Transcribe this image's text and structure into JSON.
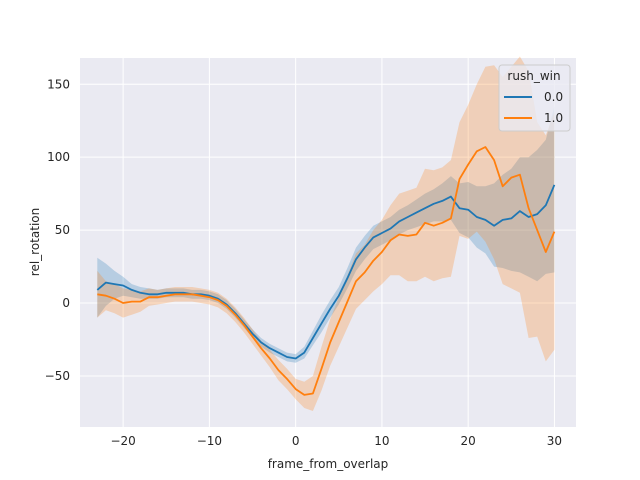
{
  "chart_data": {
    "type": "line",
    "title": "",
    "xlabel": "frame_from_overlap",
    "ylabel": "rel_rotation",
    "xlim": [
      -25,
      32.5
    ],
    "ylim": [
      -85,
      168
    ],
    "xticks": [
      -20,
      -10,
      0,
      10,
      20,
      30
    ],
    "yticks": [
      -50,
      0,
      50,
      100,
      150
    ],
    "xtick_labels": [
      "−20",
      "−10",
      "0",
      "10",
      "20",
      "30"
    ],
    "ytick_labels": [
      "−50",
      "0",
      "50",
      "100",
      "150"
    ],
    "grid": true,
    "background": "#eaeaf2",
    "legend": {
      "title": "rush_win",
      "placement": "top-right"
    },
    "x": [
      -23,
      -22,
      -21,
      -20,
      -19,
      -18,
      -17,
      -16,
      -15,
      -14,
      -13,
      -12,
      -11,
      -10,
      -9,
      -8,
      -7,
      -6,
      -5,
      -4,
      -3,
      -2,
      -1,
      0,
      1,
      2,
      3,
      4,
      5,
      6,
      7,
      8,
      9,
      10,
      11,
      12,
      13,
      14,
      15,
      16,
      17,
      18,
      19,
      20,
      21,
      22,
      23,
      24,
      25,
      26,
      27,
      28,
      29,
      30
    ],
    "series": [
      {
        "name": "0.0",
        "color": "#1f77b4",
        "values": [
          9,
          14,
          13,
          12,
          9,
          7,
          6,
          6,
          7,
          7,
          7,
          6,
          6,
          5,
          3,
          -1,
          -7,
          -14,
          -21,
          -27,
          -31,
          -34,
          -37,
          -38,
          -34,
          -24,
          -14,
          -4,
          5,
          17,
          30,
          38,
          45,
          48,
          51,
          56,
          59,
          62,
          65,
          68,
          70,
          73,
          65,
          64,
          59,
          57,
          53,
          57,
          58,
          63,
          59,
          61,
          67,
          81
        ],
        "lower": [
          -10,
          -2,
          3,
          5,
          4,
          3,
          3,
          3,
          4,
          4,
          4,
          3,
          3,
          2,
          0,
          -4,
          -10,
          -17,
          -24,
          -30,
          -34,
          -37,
          -40,
          -41,
          -38,
          -29,
          -20,
          -10,
          -1,
          10,
          22,
          30,
          37,
          40,
          43,
          47,
          50,
          52,
          54,
          56,
          56,
          57,
          48,
          45,
          38,
          34,
          25,
          24,
          22,
          21,
          18,
          15,
          20,
          21
        ],
        "upper": [
          31,
          27,
          22,
          18,
          13,
          11,
          10,
          9,
          10,
          10,
          10,
          9,
          9,
          8,
          6,
          2,
          -4,
          -11,
          -18,
          -24,
          -28,
          -31,
          -34,
          -35,
          -30,
          -19,
          -8,
          2,
          11,
          24,
          38,
          46,
          53,
          56,
          59,
          64,
          67,
          71,
          75,
          78,
          82,
          87,
          82,
          83,
          80,
          80,
          82,
          88,
          92,
          100,
          100,
          105,
          112,
          135
        ]
      },
      {
        "name": "1.0",
        "color": "#ff7f0e",
        "values": [
          6,
          5,
          3,
          0,
          1,
          1,
          4,
          4,
          5,
          6,
          6,
          6,
          5,
          4,
          2,
          -2,
          -8,
          -15,
          -23,
          -31,
          -38,
          -46,
          -52,
          -59,
          -63,
          -62,
          -45,
          -27,
          -13,
          1,
          15,
          21,
          29,
          35,
          43,
          47,
          46,
          47,
          55,
          53,
          55,
          58,
          85,
          95,
          104,
          107,
          98,
          80,
          86,
          88,
          65,
          50,
          35,
          49
        ],
        "lower": [
          -10,
          -5,
          -7,
          -10,
          -8,
          -6,
          -2,
          -1,
          0,
          1,
          1,
          1,
          0,
          -1,
          -3,
          -7,
          -13,
          -20,
          -28,
          -36,
          -44,
          -53,
          -59,
          -66,
          -72,
          -74,
          -60,
          -43,
          -30,
          -17,
          -4,
          2,
          8,
          13,
          19,
          19,
          15,
          15,
          18,
          15,
          17,
          18,
          46,
          44,
          49,
          42,
          30,
          13,
          10,
          7,
          -24,
          -23,
          -40,
          -32
        ],
        "upper": [
          22,
          15,
          13,
          10,
          9,
          8,
          10,
          9,
          10,
          11,
          11,
          11,
          10,
          9,
          7,
          3,
          -3,
          -10,
          -18,
          -26,
          -32,
          -39,
          -45,
          -52,
          -54,
          -50,
          -30,
          -11,
          4,
          19,
          34,
          40,
          50,
          57,
          67,
          75,
          77,
          79,
          92,
          91,
          93,
          98,
          124,
          136,
          150,
          162,
          163,
          155,
          162,
          169,
          159,
          124,
          115,
          131
        ]
      }
    ]
  }
}
